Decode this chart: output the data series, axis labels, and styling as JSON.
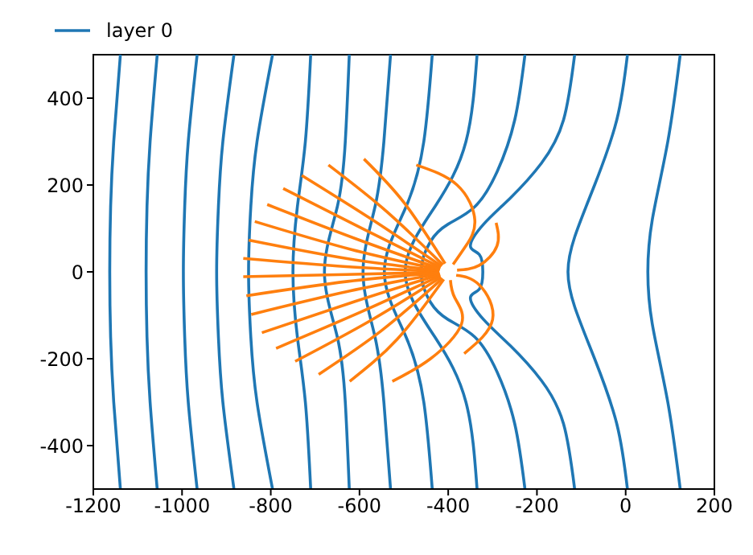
{
  "chart_data": {
    "type": "line",
    "legend": "top left",
    "xlim": [
      -1200,
      200
    ],
    "xticks": [
      -1200,
      -1000,
      -800,
      -600,
      -400,
      -200,
      0,
      200
    ],
    "ylim": [
      -500,
      500
    ],
    "yticks": [
      -400,
      -200,
      0,
      200,
      400
    ],
    "series": [
      {
        "name": "layer 0",
        "color": "#1f77b4",
        "x": [
          -1139,
          -1154,
          -1161,
          -1163,
          -1161,
          -1154,
          -1139
        ],
        "values": [
          500,
          300,
          150,
          0,
          -150,
          -300,
          -500
        ]
      },
      {
        "color": "#1f77b4",
        "x": [
          -1056,
          -1072,
          -1079,
          -1081,
          -1079,
          -1072,
          -1056
        ],
        "values": [
          500,
          300,
          150,
          0,
          -150,
          -300,
          -500
        ]
      },
      {
        "color": "#1f77b4",
        "x": [
          -966,
          -986,
          -994,
          -997,
          -994,
          -986,
          -966
        ],
        "values": [
          500,
          300,
          150,
          0,
          -150,
          -300,
          -500
        ]
      },
      {
        "color": "#1f77b4",
        "x": [
          -883,
          -908,
          -918,
          -922,
          -918,
          -908,
          -883
        ],
        "values": [
          500,
          300,
          150,
          0,
          -150,
          -300,
          -500
        ]
      },
      {
        "color": "#1f77b4",
        "x": [
          -796,
          -831,
          -845,
          -850,
          -845,
          -831,
          -796
        ],
        "values": [
          500,
          300,
          150,
          0,
          -150,
          -300,
          -500
        ]
      },
      {
        "color": "#1f77b4",
        "x": [
          -710,
          -722,
          -740,
          -750,
          -740,
          -722,
          -710
        ],
        "values": [
          500,
          300,
          150,
          0,
          -150,
          -300,
          -500
        ]
      },
      {
        "color": "#1f77b4",
        "x": [
          -623,
          -632,
          -650,
          -679,
          -650,
          -632,
          -623
        ],
        "values": [
          500,
          300,
          150,
          0,
          -150,
          -300,
          -500
        ]
      },
      {
        "color": "#1f77b4",
        "x": [
          -530,
          -545,
          -565,
          -592,
          -565,
          -545,
          -530
        ],
        "values": [
          500,
          300,
          150,
          0,
          -150,
          -300,
          -500
        ]
      },
      {
        "color": "#1f77b4",
        "x": [
          -436,
          -455,
          -495,
          -544,
          -495,
          -455,
          -436
        ],
        "values": [
          500,
          300,
          150,
          0,
          -150,
          -300,
          -500
        ]
      },
      {
        "color": "#1f77b4",
        "x": [
          -335,
          -360,
          -430,
          -497,
          -430,
          -360,
          -335
        ],
        "values": [
          500,
          300,
          150,
          0,
          -150,
          -300,
          -500
        ]
      },
      {
        "color": "#1f77b4",
        "x": [
          -227,
          -250,
          -290,
          -340,
          -400,
          -440,
          -461,
          -440,
          -400,
          -340,
          -290,
          -250,
          -227
        ],
        "values": [
          500,
          350,
          230,
          150,
          110,
          70,
          0,
          -70,
          -110,
          -150,
          -230,
          -350,
          -500
        ]
      },
      {
        "color": "#1f77b4",
        "x": [
          -115,
          -140,
          -190,
          -260,
          -320,
          -350,
          -330,
          -322,
          -330,
          -350,
          -320,
          -260,
          -190,
          -140,
          -115
        ],
        "values": [
          500,
          350,
          250,
          170,
          110,
          60,
          40,
          0,
          -40,
          -60,
          -110,
          -170,
          -250,
          -350,
          -500
        ]
      },
      {
        "color": "#1f77b4",
        "x": [
          4,
          -20,
          -70,
          -115,
          -130,
          -115,
          -70,
          -20,
          4
        ],
        "values": [
          500,
          350,
          200,
          80,
          0,
          -80,
          -200,
          -350,
          -500
        ]
      },
      {
        "color": "#1f77b4",
        "x": [
          123,
          95,
          60,
          50,
          60,
          95,
          123
        ],
        "values": [
          500,
          300,
          120,
          0,
          -120,
          -300,
          -500
        ]
      },
      {
        "color": "#ff7f0e",
        "x": [
          -862,
          -630,
          -420
        ],
        "values": [
          31,
          12,
          1
        ]
      },
      {
        "color": "#ff7f0e",
        "x": [
          -862,
          -630,
          -420
        ],
        "values": [
          -11,
          -6,
          -1
        ]
      },
      {
        "color": "#ff7f0e",
        "x": [
          -850,
          -625,
          -420
        ],
        "values": [
          73,
          30,
          3
        ]
      },
      {
        "color": "#ff7f0e",
        "x": [
          -855,
          -627,
          -420
        ],
        "values": [
          -55,
          -22,
          -2
        ]
      },
      {
        "color": "#ff7f0e",
        "x": [
          -836,
          -620,
          -419
        ],
        "values": [
          116,
          52,
          5
        ]
      },
      {
        "color": "#ff7f0e",
        "x": [
          -844,
          -622,
          -419
        ],
        "values": [
          -98,
          -44,
          -4
        ]
      },
      {
        "color": "#ff7f0e",
        "x": [
          -808,
          -605,
          -418
        ],
        "values": [
          155,
          75,
          7
        ]
      },
      {
        "color": "#ff7f0e",
        "x": [
          -820,
          -610,
          -418
        ],
        "values": [
          -140,
          -68,
          -6
        ]
      },
      {
        "color": "#ff7f0e",
        "x": [
          -772,
          -590,
          -417
        ],
        "values": [
          192,
          98,
          10
        ]
      },
      {
        "color": "#ff7f0e",
        "x": [
          -788,
          -596,
          -418
        ],
        "values": [
          -176,
          -92,
          -9
        ]
      },
      {
        "color": "#ff7f0e",
        "x": [
          -730,
          -568,
          -415
        ],
        "values": [
          222,
          118,
          13
        ]
      },
      {
        "color": "#ff7f0e",
        "x": [
          -745,
          -575,
          -416
        ],
        "values": [
          -206,
          -112,
          -12
        ]
      },
      {
        "color": "#ff7f0e",
        "x": [
          -670,
          -540,
          -412
        ],
        "values": [
          246,
          140,
          16
        ]
      },
      {
        "color": "#ff7f0e",
        "x": [
          -692,
          -550,
          -413
        ],
        "values": [
          -236,
          -135,
          -15
        ]
      },
      {
        "color": "#ff7f0e",
        "x": [
          -590,
          -500,
          -407
        ],
        "values": [
          260,
          160,
          19
        ]
      },
      {
        "color": "#ff7f0e",
        "x": [
          -622,
          -515,
          -410
        ],
        "values": [
          -252,
          -155,
          -17
        ]
      },
      {
        "color": "#ff7f0e",
        "x": [
          -472,
          -380,
          -340,
          -360,
          -389
        ],
        "values": [
          246,
          200,
          119,
          60,
          17
        ]
      },
      {
        "color": "#ff7f0e",
        "x": [
          -526,
          -440,
          -370,
          -385,
          -395
        ],
        "values": [
          -252,
          -200,
          -120,
          -60,
          -19
        ]
      },
      {
        "color": "#ff7f0e",
        "x": [
          -292,
          -290,
          -330,
          -380
        ],
        "values": [
          113,
          60,
          15,
          4
        ]
      },
      {
        "color": "#ff7f0e",
        "x": [
          -364,
          -300,
          -330,
          -382
        ],
        "values": [
          -188,
          -110,
          -30,
          -8
        ]
      }
    ]
  }
}
